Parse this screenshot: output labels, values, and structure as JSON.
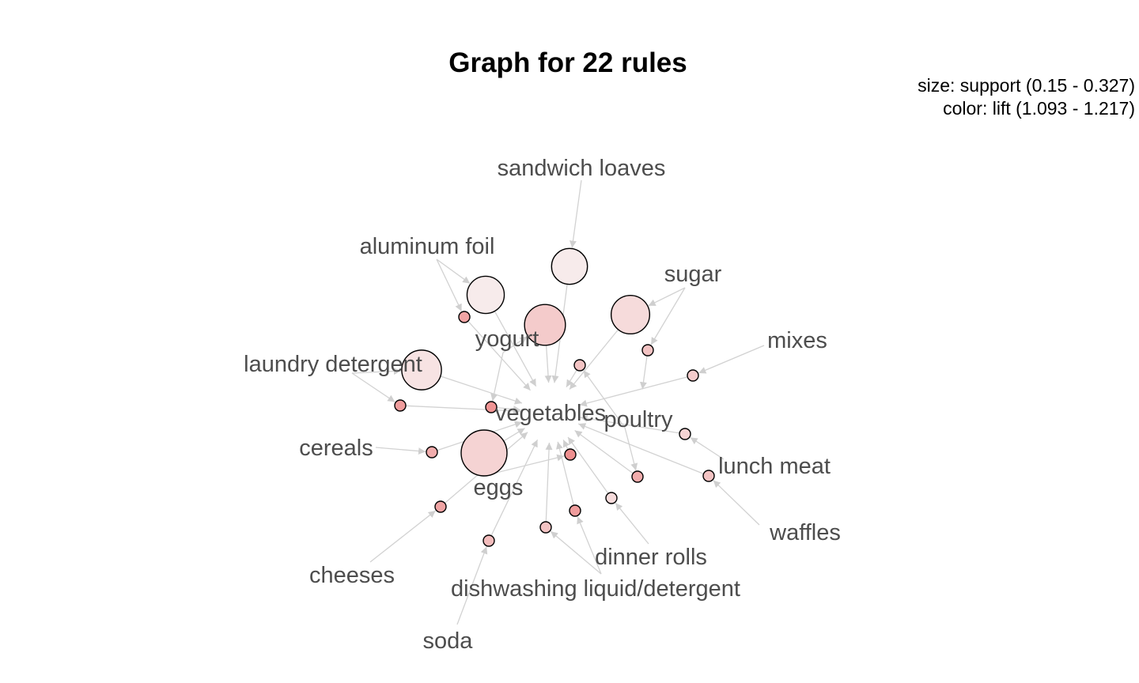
{
  "title": "Graph for 22 rules",
  "legend": {
    "size_line": "size: support (0.15 - 0.327)",
    "color_line": "color: lift (1.093 - 1.217)"
  },
  "colors": {
    "lift_low": "#f8f0f0",
    "lift_high": "#ee8f8f",
    "edge": "#d2d2d2",
    "label": "#4d4d4d"
  },
  "items": [
    {
      "id": "vegetables",
      "label": "vegetables"
    },
    {
      "id": "poultry",
      "label": "poultry"
    },
    {
      "id": "sandwich_loaves",
      "label": "sandwich loaves"
    },
    {
      "id": "aluminum_foil",
      "label": "aluminum foil"
    },
    {
      "id": "sugar",
      "label": "sugar"
    },
    {
      "id": "yogurt",
      "label": "yogurt"
    },
    {
      "id": "mixes",
      "label": "mixes"
    },
    {
      "id": "laundry_detergent",
      "label": "laundry detergent"
    },
    {
      "id": "cereals",
      "label": "cereals"
    },
    {
      "id": "lunch_meat",
      "label": "lunch meat"
    },
    {
      "id": "eggs",
      "label": "eggs"
    },
    {
      "id": "waffles",
      "label": "waffles"
    },
    {
      "id": "dinner_rolls",
      "label": "dinner rolls"
    },
    {
      "id": "cheeses",
      "label": "cheeses"
    },
    {
      "id": "dishwashing",
      "label": "dishwashing liquid/detergent"
    },
    {
      "id": "soda",
      "label": "soda"
    }
  ],
  "rules": [
    {
      "lhs": [
        "sandwich_loaves"
      ],
      "rhs": "vegetables",
      "support": 0.24,
      "lift": 1.1
    },
    {
      "lhs": [
        "aluminum_foil"
      ],
      "rhs": "vegetables",
      "support": 0.25,
      "lift": 1.1
    },
    {
      "lhs": [
        "aluminum_foil"
      ],
      "rhs": "vegetables",
      "support": 0.15,
      "lift": 1.19
    },
    {
      "lhs": [
        "yogurt"
      ],
      "rhs": "vegetables",
      "support": 0.28,
      "lift": 1.14
    },
    {
      "lhs": [
        "sugar"
      ],
      "rhs": "vegetables",
      "support": 0.26,
      "lift": 1.12
    },
    {
      "lhs": [
        "sugar"
      ],
      "rhs": "poultry",
      "support": 0.15,
      "lift": 1.15
    },
    {
      "lhs": [
        "laundry_detergent"
      ],
      "rhs": "vegetables",
      "support": 0.27,
      "lift": 1.11
    },
    {
      "lhs": [
        "laundry_detergent"
      ],
      "rhs": "vegetables",
      "support": 0.15,
      "lift": 1.2
    },
    {
      "lhs": [
        "yogurt"
      ],
      "rhs": "vegetables",
      "support": 0.15,
      "lift": 1.21
    },
    {
      "lhs": [
        "poultry"
      ],
      "rhs": "vegetables",
      "support": 0.15,
      "lift": 1.15
    },
    {
      "lhs": [
        "mixes"
      ],
      "rhs": "vegetables",
      "support": 0.15,
      "lift": 1.14
    },
    {
      "lhs": [
        "cereals"
      ],
      "rhs": "vegetables",
      "support": 0.15,
      "lift": 1.18
    },
    {
      "lhs": [
        "eggs"
      ],
      "rhs": "vegetables",
      "support": 0.327,
      "lift": 1.13
    },
    {
      "lhs": [
        "lunch_meat"
      ],
      "rhs": "vegetables",
      "support": 0.15,
      "lift": 1.13
    },
    {
      "lhs": [
        "waffles"
      ],
      "rhs": "vegetables",
      "support": 0.15,
      "lift": 1.15
    },
    {
      "lhs": [
        "poultry"
      ],
      "rhs": "vegetables",
      "support": 0.15,
      "lift": 1.18
    },
    {
      "lhs": [
        "cheeses"
      ],
      "rhs": "vegetables",
      "support": 0.15,
      "lift": 1.19
    },
    {
      "lhs": [
        "dinner_rolls"
      ],
      "rhs": "vegetables",
      "support": 0.15,
      "lift": 1.12
    },
    {
      "lhs": [
        "dishwashing"
      ],
      "rhs": "vegetables",
      "support": 0.15,
      "lift": 1.2
    },
    {
      "lhs": [
        "eggs"
      ],
      "rhs": "vegetables",
      "support": 0.15,
      "lift": 1.217
    },
    {
      "lhs": [
        "dishwashing"
      ],
      "rhs": "vegetables",
      "support": 0.15,
      "lift": 1.15
    },
    {
      "lhs": [
        "soda"
      ],
      "rhs": "vegetables",
      "support": 0.15,
      "lift": 1.16
    }
  ]
}
